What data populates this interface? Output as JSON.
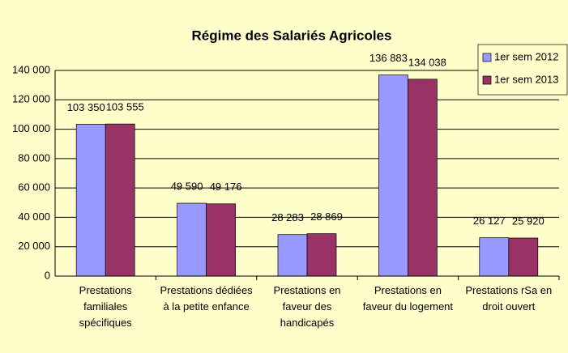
{
  "chart_data": {
    "type": "bar",
    "title": "Régime des Salariés Agricoles",
    "categories": [
      "Prestations\nfamiliales\nspécifiques",
      "Prestations dédiées\nà la petite enfance",
      "Prestations en\nfaveur des\nhandicapés",
      "Prestations en\nfaveur du logement",
      "Prestations rSa en\ndroit ouvert"
    ],
    "series": [
      {
        "name": "1er sem 2012",
        "color": "#9999ff",
        "values": [
          103350,
          49590,
          28283,
          136883,
          26127
        ],
        "value_labels": [
          "103 350",
          "49 590",
          "28 283",
          "136 883",
          "26 127"
        ]
      },
      {
        "name": "1er sem 2013",
        "color": "#993366",
        "values": [
          103555,
          49176,
          28869,
          134038,
          25920
        ],
        "value_labels": [
          "103 555",
          "49 176",
          "28 869",
          "134 038",
          "25 920"
        ]
      }
    ],
    "ylim": [
      0,
      140000
    ],
    "yticks": [
      0,
      {
        "value": 20000,
        "label": "20 000"
      },
      {
        "value": 40000,
        "label": "40 000"
      },
      {
        "value": 60000,
        "label": "60 000"
      },
      {
        "value": 80000,
        "label": "80 000"
      },
      {
        "value": 100000,
        "label": "100 000"
      },
      {
        "value": 120000,
        "label": "120 000"
      },
      {
        "value": 140000,
        "label": "140 000"
      }
    ],
    "grid": true,
    "legend": "top-right"
  }
}
